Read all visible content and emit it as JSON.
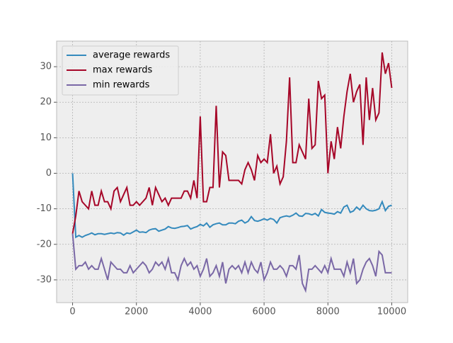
{
  "chart_data": {
    "type": "line",
    "x": [
      0,
      100,
      200,
      300,
      400,
      500,
      600,
      700,
      800,
      900,
      1000,
      1100,
      1200,
      1300,
      1400,
      1500,
      1600,
      1700,
      1800,
      1900,
      2000,
      2100,
      2200,
      2300,
      2400,
      2500,
      2600,
      2700,
      2800,
      2900,
      3000,
      3100,
      3200,
      3300,
      3400,
      3500,
      3600,
      3700,
      3800,
      3900,
      4000,
      4100,
      4200,
      4300,
      4400,
      4500,
      4600,
      4700,
      4800,
      4900,
      5000,
      5100,
      5200,
      5300,
      5400,
      5500,
      5600,
      5700,
      5800,
      5900,
      6000,
      6100,
      6200,
      6300,
      6400,
      6500,
      6600,
      6700,
      6800,
      6900,
      7000,
      7100,
      7200,
      7300,
      7400,
      7500,
      7600,
      7700,
      7800,
      7900,
      8000,
      8100,
      8200,
      8300,
      8400,
      8500,
      8600,
      8700,
      8800,
      8900,
      9000,
      9100,
      9200,
      9300,
      9400,
      9500,
      9600,
      9700,
      9800,
      9900,
      10000
    ],
    "series": [
      {
        "name": "average rewards",
        "color": "#348ABD",
        "values": [
          0,
          -18,
          -17.5,
          -18,
          -17.5,
          -17.2,
          -16.8,
          -17.3,
          -17,
          -17,
          -17.2,
          -17,
          -16.8,
          -17,
          -16.7,
          -16.8,
          -17.4,
          -16.8,
          -17,
          -16.5,
          -16,
          -16.6,
          -16.5,
          -16.7,
          -16,
          -15.7,
          -15.6,
          -16.3,
          -16,
          -15.7,
          -15,
          -15.4,
          -15.5,
          -15.3,
          -15,
          -14.9,
          -14.7,
          -15.7,
          -15.3,
          -15,
          -14.4,
          -14.8,
          -14,
          -15.2,
          -14.5,
          -14.2,
          -14,
          -14.5,
          -14.5,
          -14,
          -14,
          -14.2,
          -13.5,
          -13.2,
          -14,
          -13.5,
          -12.2,
          -13.3,
          -13.5,
          -13.2,
          -12.8,
          -13.2,
          -12.7,
          -13,
          -14,
          -12.5,
          -12.2,
          -12,
          -12.2,
          -11.8,
          -11.2,
          -12,
          -12.1,
          -11.3,
          -11.4,
          -11.7,
          -11.3,
          -12,
          -10.2,
          -11,
          -11.2,
          -11.3,
          -11.5,
          -10.8,
          -11.2,
          -9.5,
          -9,
          -11,
          -10.6,
          -9.5,
          -10.3,
          -9,
          -10,
          -10.5,
          -10.6,
          -10.4,
          -10,
          -8,
          -10.5,
          -9.3,
          -9
        ]
      },
      {
        "name": "max rewards",
        "color": "#A60628",
        "values": [
          -17,
          -12,
          -5,
          -8,
          -9,
          -10,
          -5,
          -9,
          -9,
          -5,
          -8,
          -8,
          -10,
          -5,
          -4,
          -8,
          -6,
          -4,
          -9,
          -9,
          -8,
          -9,
          -8,
          -7,
          -4,
          -9,
          -4,
          -6,
          -8,
          -7,
          -9,
          -7,
          -7,
          -7,
          -7,
          -5,
          -5,
          -7,
          -2,
          -7,
          16,
          -8,
          -8,
          -4,
          -4,
          19,
          -4,
          6,
          5,
          -2,
          -2,
          -2,
          -2,
          -3,
          1,
          3,
          1,
          -2,
          5,
          3,
          4,
          3,
          11,
          0,
          2,
          -3,
          -1,
          9,
          27,
          3,
          3,
          8,
          6,
          4,
          21,
          7,
          8,
          26,
          21,
          22,
          0,
          9,
          4,
          13,
          7,
          16,
          23,
          28,
          20,
          23,
          25,
          8,
          27,
          15,
          24,
          15,
          17,
          34,
          28,
          31,
          24
        ]
      },
      {
        "name": "min rewards",
        "color": "#7A68A6",
        "values": [
          -17,
          -27,
          -26,
          -26,
          -25,
          -27,
          -26,
          -27,
          -27,
          -24,
          -27,
          -30,
          -25,
          -26,
          -27,
          -27,
          -28,
          -28,
          -26,
          -28,
          -27,
          -26,
          -25,
          -26,
          -28,
          -27,
          -25,
          -26,
          -25,
          -27,
          -24,
          -28,
          -28,
          -30,
          -26,
          -24,
          -26,
          -25,
          -27,
          -26,
          -29,
          -27,
          -24,
          -29,
          -28,
          -26,
          -29,
          -25,
          -31,
          -27,
          -26,
          -27,
          -26,
          -28,
          -25,
          -28,
          -25,
          -27,
          -28,
          -25,
          -30,
          -28,
          -25,
          -27,
          -27,
          -26,
          -27,
          -29,
          -26,
          -26,
          -27,
          -23,
          -31,
          -33,
          -27,
          -27,
          -26,
          -27,
          -28,
          -26,
          -28,
          -24,
          -27,
          -27,
          -27,
          -29,
          -25,
          -28,
          -24,
          -31,
          -30,
          -27,
          -25,
          -24,
          -26,
          -29,
          -22,
          -23,
          -28,
          -28,
          -28
        ]
      }
    ],
    "xlim": [
      -500,
      10500
    ],
    "ylim": [
      -36.4,
      37.2
    ],
    "xticks": [
      0,
      2000,
      4000,
      6000,
      8000,
      10000
    ],
    "yticks": [
      -30,
      -20,
      -10,
      0,
      10,
      20,
      30
    ],
    "grid": true,
    "legend": "upper left"
  }
}
